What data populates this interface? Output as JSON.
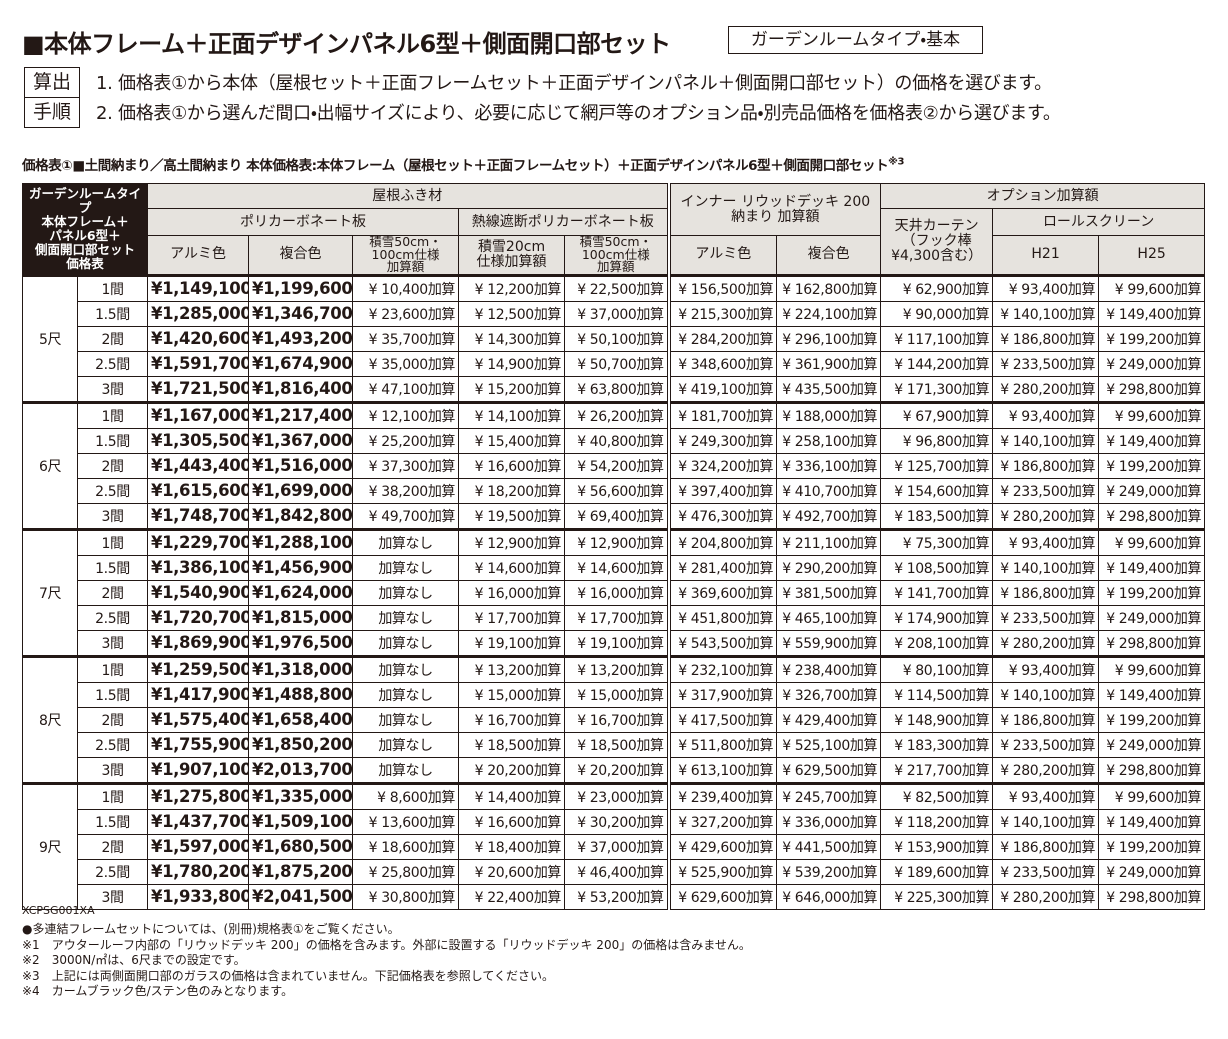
{
  "header": {
    "title": "■本体フレーム＋正面デザインパネル6型＋側面開口部セット",
    "badge": "ガーデンルームタイプ・基本"
  },
  "steps": {
    "label": [
      "算出",
      "手順"
    ],
    "items": [
      "1. 価格表①から本体（屋根セット＋正面フレームセット＋正面デザインパネル＋側面開口部セット）の価格を選びます。",
      "2. 価格表①から選んだ間口・出幅サイズにより、必要に応じて網戸等のオプション品・別売品価格を価格表②から選びます。"
    ]
  },
  "table": {
    "caption": "価格表①■土間納まり／高土間納まり 本体価格表:本体フレーム（屋根セット＋正面フレームセット）＋正面デザインパネル6型＋側面開口部セット",
    "caption_note": "※3",
    "corner": "ガーデンルームタイプ\n本体フレーム＋\nパネル6型＋\n側面開口部セット\n価格表",
    "groups": {
      "roof": "屋根ふき材",
      "poly": "ポリカーボネート板",
      "heat": "熱線遮断ポリカーボネート板",
      "inner": "インナー リウッドデッキ 200\n納まり 加算額",
      "option": "オプション加算額",
      "curtain": "天井カーテン\n（フック棒\n¥4,300含む）",
      "roll": "ロールスクリーン"
    },
    "columns": [
      "アルミ色",
      "複合色",
      "積雪50cm・\n100cm仕様\n加算額",
      "積雪20cm\n仕様加算額",
      "積雪50cm・\n100cm仕様\n加算額",
      "アルミ色",
      "複合色",
      "H21",
      "H25"
    ],
    "sections": [
      {
        "label": "5尺",
        "rows": [
          [
            "1間",
            "¥1,149,100",
            "¥1,199,600",
            "¥ 10,400加算",
            "¥ 12,200加算",
            "¥ 22,500加算",
            "¥ 156,500加算",
            "¥ 162,800加算",
            "¥ 62,900加算",
            "¥ 93,400加算",
            "¥ 99,600加算"
          ],
          [
            "1.5間",
            "¥1,285,000",
            "¥1,346,700",
            "¥ 23,600加算",
            "¥ 12,500加算",
            "¥ 37,000加算",
            "¥ 215,300加算",
            "¥ 224,100加算",
            "¥ 90,000加算",
            "¥ 140,100加算",
            "¥ 149,400加算"
          ],
          [
            "2間",
            "¥1,420,600",
            "¥1,493,200",
            "¥ 35,700加算",
            "¥ 14,300加算",
            "¥ 50,100加算",
            "¥ 284,200加算",
            "¥ 296,100加算",
            "¥ 117,100加算",
            "¥ 186,800加算",
            "¥ 199,200加算"
          ],
          [
            "2.5間",
            "¥1,591,700",
            "¥1,674,900",
            "¥ 35,000加算",
            "¥ 14,900加算",
            "¥ 50,700加算",
            "¥ 348,600加算",
            "¥ 361,900加算",
            "¥ 144,200加算",
            "¥ 233,500加算",
            "¥ 249,000加算"
          ],
          [
            "3間",
            "¥1,721,500",
            "¥1,816,400",
            "¥ 47,100加算",
            "¥ 15,200加算",
            "¥ 63,800加算",
            "¥ 419,100加算",
            "¥ 435,500加算",
            "¥ 171,300加算",
            "¥ 280,200加算",
            "¥ 298,800加算"
          ]
        ]
      },
      {
        "label": "6尺",
        "rows": [
          [
            "1間",
            "¥1,167,000",
            "¥1,217,400",
            "¥ 12,100加算",
            "¥ 14,100加算",
            "¥ 26,200加算",
            "¥ 181,700加算",
            "¥ 188,000加算",
            "¥ 67,900加算",
            "¥ 93,400加算",
            "¥ 99,600加算"
          ],
          [
            "1.5間",
            "¥1,305,500",
            "¥1,367,000",
            "¥ 25,200加算",
            "¥ 15,400加算",
            "¥ 40,800加算",
            "¥ 249,300加算",
            "¥ 258,100加算",
            "¥ 96,800加算",
            "¥ 140,100加算",
            "¥ 149,400加算"
          ],
          [
            "2間",
            "¥1,443,400",
            "¥1,516,000",
            "¥ 37,300加算",
            "¥ 16,600加算",
            "¥ 54,200加算",
            "¥ 324,200加算",
            "¥ 336,100加算",
            "¥ 125,700加算",
            "¥ 186,800加算",
            "¥ 199,200加算"
          ],
          [
            "2.5間",
            "¥1,615,600",
            "¥1,699,000",
            "¥ 38,200加算",
            "¥ 18,200加算",
            "¥ 56,600加算",
            "¥ 397,400加算",
            "¥ 410,700加算",
            "¥ 154,600加算",
            "¥ 233,500加算",
            "¥ 249,000加算"
          ],
          [
            "3間",
            "¥1,748,700",
            "¥1,842,800",
            "¥ 49,700加算",
            "¥ 19,500加算",
            "¥ 69,400加算",
            "¥ 476,300加算",
            "¥ 492,700加算",
            "¥ 183,500加算",
            "¥ 280,200加算",
            "¥ 298,800加算"
          ]
        ]
      },
      {
        "label": "7尺",
        "rows": [
          [
            "1間",
            "¥1,229,700",
            "¥1,288,100",
            "加算なし",
            "¥ 12,900加算",
            "¥ 12,900加算",
            "¥ 204,800加算",
            "¥ 211,100加算",
            "¥ 75,300加算",
            "¥ 93,400加算",
            "¥ 99,600加算"
          ],
          [
            "1.5間",
            "¥1,386,100",
            "¥1,456,900",
            "加算なし",
            "¥ 14,600加算",
            "¥ 14,600加算",
            "¥ 281,400加算",
            "¥ 290,200加算",
            "¥ 108,500加算",
            "¥ 140,100加算",
            "¥ 149,400加算"
          ],
          [
            "2間",
            "¥1,540,900",
            "¥1,624,000",
            "加算なし",
            "¥ 16,000加算",
            "¥ 16,000加算",
            "¥ 369,600加算",
            "¥ 381,500加算",
            "¥ 141,700加算",
            "¥ 186,800加算",
            "¥ 199,200加算"
          ],
          [
            "2.5間",
            "¥1,720,700",
            "¥1,815,000",
            "加算なし",
            "¥ 17,700加算",
            "¥ 17,700加算",
            "¥ 451,800加算",
            "¥ 465,100加算",
            "¥ 174,900加算",
            "¥ 233,500加算",
            "¥ 249,000加算"
          ],
          [
            "3間",
            "¥1,869,900",
            "¥1,976,500",
            "加算なし",
            "¥ 19,100加算",
            "¥ 19,100加算",
            "¥ 543,500加算",
            "¥ 559,900加算",
            "¥ 208,100加算",
            "¥ 280,200加算",
            "¥ 298,800加算"
          ]
        ]
      },
      {
        "label": "8尺",
        "rows": [
          [
            "1間",
            "¥1,259,500",
            "¥1,318,000",
            "加算なし",
            "¥ 13,200加算",
            "¥ 13,200加算",
            "¥ 232,100加算",
            "¥ 238,400加算",
            "¥ 80,100加算",
            "¥ 93,400加算",
            "¥ 99,600加算"
          ],
          [
            "1.5間",
            "¥1,417,900",
            "¥1,488,800",
            "加算なし",
            "¥ 15,000加算",
            "¥ 15,000加算",
            "¥ 317,900加算",
            "¥ 326,700加算",
            "¥ 114,500加算",
            "¥ 140,100加算",
            "¥ 149,400加算"
          ],
          [
            "2間",
            "¥1,575,400",
            "¥1,658,400",
            "加算なし",
            "¥ 16,700加算",
            "¥ 16,700加算",
            "¥ 417,500加算",
            "¥ 429,400加算",
            "¥ 148,900加算",
            "¥ 186,800加算",
            "¥ 199,200加算"
          ],
          [
            "2.5間",
            "¥1,755,900",
            "¥1,850,200",
            "加算なし",
            "¥ 18,500加算",
            "¥ 18,500加算",
            "¥ 511,800加算",
            "¥ 525,100加算",
            "¥ 183,300加算",
            "¥ 233,500加算",
            "¥ 249,000加算"
          ],
          [
            "3間",
            "¥1,907,100",
            "¥2,013,700",
            "加算なし",
            "¥ 20,200加算",
            "¥ 20,200加算",
            "¥ 613,100加算",
            "¥ 629,500加算",
            "¥ 217,700加算",
            "¥ 280,200加算",
            "¥ 298,800加算"
          ]
        ]
      },
      {
        "label": "9尺",
        "rows": [
          [
            "1間",
            "¥1,275,800",
            "¥1,335,000",
            "¥ 8,600加算",
            "¥ 14,400加算",
            "¥ 23,000加算",
            "¥ 239,400加算",
            "¥ 245,700加算",
            "¥ 82,500加算",
            "¥ 93,400加算",
            "¥ 99,600加算"
          ],
          [
            "1.5間",
            "¥1,437,700",
            "¥1,509,100",
            "¥ 13,600加算",
            "¥ 16,600加算",
            "¥ 30,200加算",
            "¥ 327,200加算",
            "¥ 336,000加算",
            "¥ 118,200加算",
            "¥ 140,100加算",
            "¥ 149,400加算"
          ],
          [
            "2間",
            "¥1,597,000",
            "¥1,680,500",
            "¥ 18,600加算",
            "¥ 18,400加算",
            "¥ 37,000加算",
            "¥ 429,600加算",
            "¥ 441,500加算",
            "¥ 153,900加算",
            "¥ 186,800加算",
            "¥ 199,200加算"
          ],
          [
            "2.5間",
            "¥1,780,200",
            "¥1,875,200",
            "¥ 25,800加算",
            "¥ 20,600加算",
            "¥ 46,400加算",
            "¥ 525,900加算",
            "¥ 539,200加算",
            "¥ 189,600加算",
            "¥ 233,500加算",
            "¥ 249,000加算"
          ],
          [
            "3間",
            "¥1,933,800",
            "¥2,041,500",
            "¥ 30,800加算",
            "¥ 22,400加算",
            "¥ 53,200加算",
            "¥ 629,600加算",
            "¥ 646,000加算",
            "¥ 225,300加算",
            "¥ 280,200加算",
            "¥ 298,800加算"
          ]
        ]
      }
    ],
    "code": "XCPSG001XA"
  },
  "notes": [
    "●多連結フレームセットについては、(別冊)規格表①をご覧ください。",
    "※1　アウタールーフ内部の「リウッドデッキ 200」の価格を含みます。外部に設置する「リウッドデッキ 200」の価格は含みません。",
    "※2　3000N/㎡は、6尺までの設定です。",
    "※3　上記には両側面開口部のガラスの価格は含まれていません。下記価格表を参照してください。",
    "※4　カームブラック色/ステン色のみとなります。"
  ]
}
